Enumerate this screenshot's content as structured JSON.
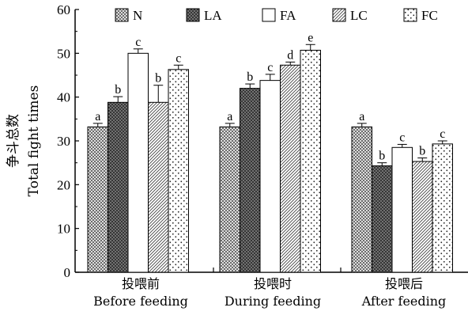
{
  "chart_data": {
    "type": "bar",
    "ylabel_zh": "争斗总数",
    "ylabel": "Total fight times",
    "ylim": [
      0,
      60
    ],
    "yticks": [
      "0",
      "10",
      "20",
      "30",
      "40",
      "50",
      "60"
    ],
    "legend_position": "top",
    "categories": [
      {
        "zh": "投喂前",
        "en": "Before feeding"
      },
      {
        "zh": "投喂时",
        "en": "During feeding"
      },
      {
        "zh": "投喂后",
        "en": "After feeding"
      }
    ],
    "series": [
      {
        "name": "N",
        "pattern": "crosshatch-fine",
        "values": [
          33.2,
          33.2,
          33.2
        ],
        "errors": [
          0.8,
          0.8,
          0.8
        ],
        "letters": [
          "a",
          "a",
          "a"
        ]
      },
      {
        "name": "LA",
        "pattern": "crosshatch-dark",
        "values": [
          38.8,
          42.0,
          24.3
        ],
        "errors": [
          1.3,
          1.0,
          0.7
        ],
        "letters": [
          "b",
          "b",
          "b"
        ]
      },
      {
        "name": "FA",
        "pattern": "white",
        "values": [
          50.0,
          43.8,
          28.5
        ],
        "errors": [
          1.0,
          1.4,
          0.7
        ],
        "letters": [
          "c",
          "c",
          "c"
        ]
      },
      {
        "name": "LC",
        "pattern": "diagonal",
        "values": [
          38.8,
          47.3,
          25.3
        ],
        "errors": [
          3.9,
          0.7,
          0.8
        ],
        "letters": [
          "b",
          "d",
          "b"
        ]
      },
      {
        "name": "FC",
        "pattern": "dots",
        "values": [
          46.3,
          50.7,
          29.3
        ],
        "errors": [
          1.0,
          1.3,
          0.7
        ],
        "letters": [
          "c",
          "e",
          "c"
        ]
      }
    ]
  }
}
